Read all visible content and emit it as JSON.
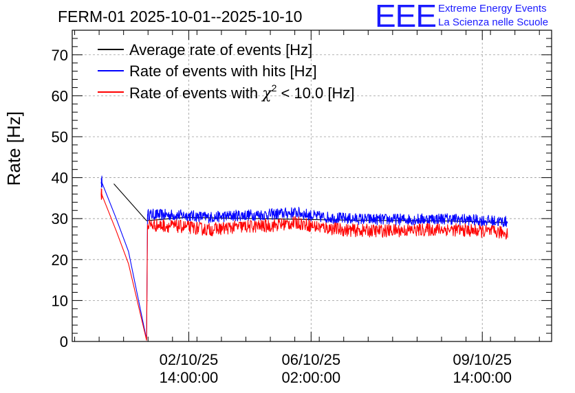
{
  "title": "FERM-01 2025-10-01--2025-10-10",
  "logo": {
    "mark": "EEE",
    "line1": "Extreme Energy Events",
    "line2": "La Scienza nelle Scuole"
  },
  "chart_data": {
    "type": "line",
    "title": "FERM-01 2025-10-01--2025-10-10",
    "xlabel": "",
    "ylabel": "Rate [Hz]",
    "ylim": [
      0,
      76
    ],
    "yticks": [
      0,
      10,
      20,
      30,
      40,
      50,
      60,
      70
    ],
    "xlim_days": [
      0.2,
      10.0
    ],
    "xticks": [
      {
        "day": 2.583,
        "date": "02/10/25",
        "time": "14:00:00"
      },
      {
        "day": 5.083,
        "date": "06/10/25",
        "time": "02:00:00"
      },
      {
        "day": 8.583,
        "date": "09/10/25",
        "time": "14:00:00"
      }
    ],
    "grid": true,
    "legend": {
      "position": "top-left",
      "entries": [
        {
          "label": "Average rate of events [Hz]",
          "color": "#000000"
        },
        {
          "label": "Rate of events with hits [Hz]",
          "color": "#0000ff"
        },
        {
          "label_pre": "Rate of events with ",
          "label_chi": "χ",
          "label_sup": "2",
          "label_post": " < 10.0 [Hz]",
          "color": "#ff0000"
        }
      ]
    },
    "series": [
      {
        "name": "Average rate of events [Hz]",
        "color": "#000000",
        "points": [
          [
            1.05,
            38.5
          ],
          [
            1.72,
            29.5
          ],
          [
            2.5,
            30.3
          ],
          [
            4.0,
            30.0
          ],
          [
            6.0,
            29.6
          ],
          [
            8.0,
            29.4
          ],
          [
            9.1,
            29.0
          ]
        ]
      },
      {
        "name": "Rate of events with hits [Hz]",
        "color": "#0000ff",
        "noise": 1.4,
        "points": [
          [
            0.8,
            39.0
          ],
          [
            1.1,
            30.0
          ],
          [
            1.35,
            22.0
          ],
          [
            1.72,
            0.5
          ],
          [
            1.74,
            31.0
          ],
          [
            2.5,
            30.8
          ],
          [
            3.0,
            30.3
          ],
          [
            3.6,
            30.8
          ],
          [
            4.2,
            31.0
          ],
          [
            4.8,
            31.5
          ],
          [
            5.2,
            30.5
          ],
          [
            5.8,
            30.0
          ],
          [
            6.5,
            29.8
          ],
          [
            7.2,
            29.8
          ],
          [
            7.8,
            30.0
          ],
          [
            8.5,
            29.6
          ],
          [
            9.1,
            29.2
          ]
        ]
      },
      {
        "name": "Rate of events with chi2 < 10.0 [Hz]",
        "color": "#ff0000",
        "noise": 1.6,
        "points": [
          [
            0.8,
            36.0
          ],
          [
            1.1,
            27.0
          ],
          [
            1.35,
            19.0
          ],
          [
            1.72,
            0.3
          ],
          [
            1.74,
            28.5
          ],
          [
            2.5,
            28.0
          ],
          [
            3.0,
            27.3
          ],
          [
            3.6,
            28.0
          ],
          [
            4.2,
            28.2
          ],
          [
            4.8,
            29.0
          ],
          [
            5.2,
            28.0
          ],
          [
            5.8,
            27.2
          ],
          [
            6.5,
            27.0
          ],
          [
            7.2,
            27.2
          ],
          [
            7.8,
            27.4
          ],
          [
            8.5,
            27.0
          ],
          [
            9.1,
            26.5
          ]
        ]
      }
    ]
  }
}
